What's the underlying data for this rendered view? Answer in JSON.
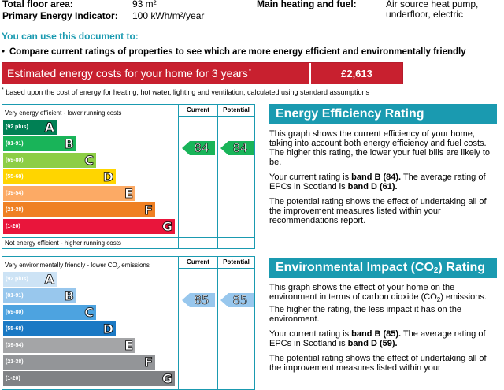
{
  "info": {
    "floor_area_label": "Total floor area:",
    "floor_area_value": "93 m²",
    "pei_label": "Primary Energy Indicator:",
    "pei_value": "100 kWh/m²/year",
    "heating_label": "Main heating and fuel:",
    "heating_value_1": "Air source heat pump,",
    "heating_value_2": "underfloor, electric"
  },
  "use_doc": {
    "heading": "You can use this document to:",
    "bullet": "•",
    "compare_text": "Compare current ratings of properties to see which are more energy efficient and environmentally friendly"
  },
  "costs": {
    "label": "Estimated energy costs for your home for 3 years",
    "label_mark": "*",
    "value": "£2,613",
    "footnote_mark": "*",
    "footnote": "based upon the cost of energy for heating, hot water, lighting and ventilation, calculated using standard assumptions"
  },
  "energy_graph": {
    "top_label": "Very energy efficient - lower running costs",
    "bottom_label": "Not energy efficient - higher running costs",
    "current_head": "Current",
    "potential_head": "Potential",
    "bands": [
      {
        "range": "(92 plus)",
        "letter": "A",
        "color": "#008054"
      },
      {
        "range": "(81-91)",
        "letter": "B",
        "color": "#19b459"
      },
      {
        "range": "(69-80)",
        "letter": "C",
        "color": "#8dce46"
      },
      {
        "range": "(55-68)",
        "letter": "D",
        "color": "#ffd500"
      },
      {
        "range": "(39-54)",
        "letter": "E",
        "color": "#fcaa65"
      },
      {
        "range": "(21-38)",
        "letter": "F",
        "color": "#ef8023"
      },
      {
        "range": "(1-20)",
        "letter": "G",
        "color": "#e9153b"
      }
    ],
    "current": "84",
    "potential": "84",
    "arrow_color": "#19b459"
  },
  "energy_panel": {
    "title": "Energy Efficiency Rating",
    "p1": "This graph shows the current efficiency of your home, taking into account both energy efficiency and fuel costs. The higher this rating, the lower your fuel bills are likely to be.",
    "p2_a": "Your current rating is ",
    "p2_b": "band B (84).",
    "p2_c": " The average rating of EPCs in Scotland is ",
    "p2_d": "band D (61).",
    "p3": "The potential rating shows the effect of undertaking all of the improvement measures listed within your recommendations report."
  },
  "env_graph": {
    "top_label_a": "Very environmentally friendly - lower CO",
    "top_label_sub": "2",
    "top_label_b": " emissions",
    "current_head": "Current",
    "potential_head": "Potential",
    "bands": [
      {
        "range": "(92 plus)",
        "letter": "A",
        "color": "#cde3f5"
      },
      {
        "range": "(81-91)",
        "letter": "B",
        "color": "#98c7ed"
      },
      {
        "range": "(69-80)",
        "letter": "C",
        "color": "#4da3e0"
      },
      {
        "range": "(55-68)",
        "letter": "D",
        "color": "#1b79c4"
      },
      {
        "range": "(39-54)",
        "letter": "E",
        "color": "#a4a5a7"
      },
      {
        "range": "(21-38)",
        "letter": "F",
        "color": "#939598"
      },
      {
        "range": "(1-20)",
        "letter": "G",
        "color": "#808285"
      }
    ],
    "current": "85",
    "potential": "85",
    "arrow_color": "#98c7ed"
  },
  "env_panel": {
    "title_a": "Environmental Impact (CO",
    "title_sub": "2",
    "title_b": ") Rating",
    "p1_a": "This graph shows the effect of your home on the environment in terms of carbon dioxide (CO",
    "p1_sub": "2",
    "p1_b": ") emissions. The higher the rating, the less impact it has on the environment.",
    "p2_a": "Your current rating is ",
    "p2_b": "band B (85).",
    "p2_c": " The average rating of EPCs in Scotland is ",
    "p2_d": "band D (59).",
    "p3": "The potential rating shows the effect of undertaking all of the improvement measures listed within your"
  }
}
